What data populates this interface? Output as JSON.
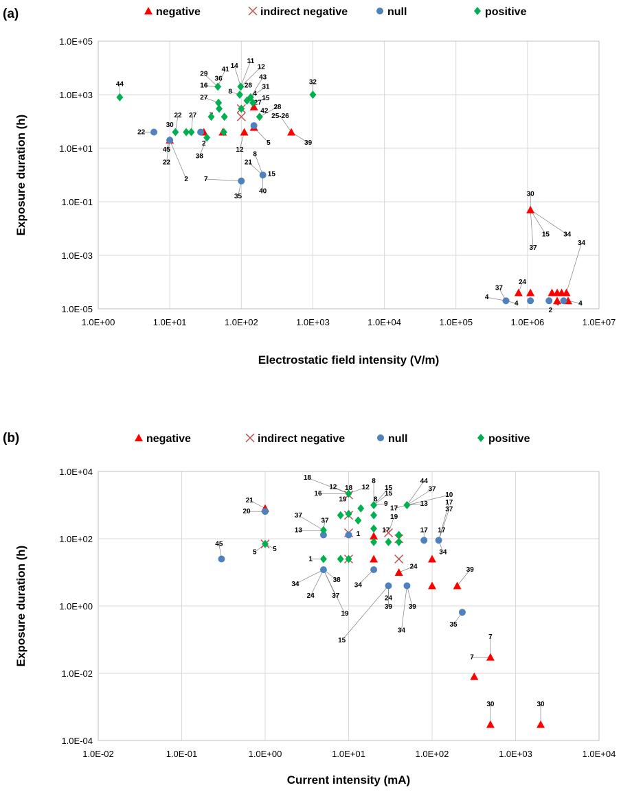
{
  "chart_data": [
    {
      "panel": "(a)",
      "type": "scatter",
      "xlabel": "Electrostatic field intensity (V/m)",
      "ylabel": "Exposure duration (h)",
      "x_scale": "log",
      "y_scale": "log",
      "xlim": [
        1,
        10000000
      ],
      "ylim": [
        1e-05,
        100000
      ],
      "x_ticks": [
        "1.0E+00",
        "1.0E+01",
        "1.0E+02",
        "1.0E+03",
        "1.0E+04",
        "1.0E+05",
        "1.0E+06",
        "1.0E+07"
      ],
      "y_ticks": [
        "1.0E-05",
        "1.0E-03",
        "1.0E-01",
        "1.0E+01",
        "1.0E+03",
        "1.0E+05"
      ],
      "grid": true,
      "legend_position": "top",
      "legend": [
        "negative",
        "indirect negative",
        "null",
        "positive"
      ],
      "series": [
        {
          "name": "negative",
          "color": "#ff0000",
          "marker": "triangle",
          "points": [
            {
              "x": 10,
              "y": 20
            },
            {
              "x": 30,
              "y": 40
            },
            {
              "x": 55,
              "y": 40
            },
            {
              "x": 110,
              "y": 40
            },
            {
              "x": 150,
              "y": 60
            },
            {
              "x": 150,
              "y": 350
            },
            {
              "x": 500,
              "y": 40
            },
            {
              "x": 1100000,
              "y": 0.05
            },
            {
              "x": 750000,
              "y": 4e-05
            },
            {
              "x": 1100000,
              "y": 4e-05
            },
            {
              "x": 2200000,
              "y": 4e-05
            },
            {
              "x": 2600000,
              "y": 4e-05
            },
            {
              "x": 2600000,
              "y": 2e-05
            },
            {
              "x": 3000000,
              "y": 4e-05
            },
            {
              "x": 3500000,
              "y": 4e-05
            },
            {
              "x": 3700000,
              "y": 2e-05
            }
          ]
        },
        {
          "name": "indirect negative",
          "color": "#c0504d",
          "marker": "x",
          "points": [
            {
              "x": 100,
              "y": 150
            },
            {
              "x": 100,
              "y": 300
            }
          ]
        },
        {
          "name": "null",
          "color": "#4f81bd",
          "marker": "circle",
          "points": [
            {
              "x": 6,
              "y": 40
            },
            {
              "x": 10,
              "y": 20
            },
            {
              "x": 27,
              "y": 40
            },
            {
              "x": 100,
              "y": 0.6
            },
            {
              "x": 150,
              "y": 70
            },
            {
              "x": 200,
              "y": 1
            },
            {
              "x": 500000,
              "y": 2e-05
            },
            {
              "x": 1100000,
              "y": 2e-05
            },
            {
              "x": 2000000,
              "y": 2e-05
            },
            {
              "x": 3200000,
              "y": 2e-05
            }
          ]
        },
        {
          "name": "positive",
          "color": "#00b050",
          "marker": "diamond",
          "points": [
            {
              "x": 2,
              "y": 800
            },
            {
              "x": 12,
              "y": 40
            },
            {
              "x": 17,
              "y": 40
            },
            {
              "x": 20,
              "y": 40
            },
            {
              "x": 33,
              "y": 25
            },
            {
              "x": 38,
              "y": 150
            },
            {
              "x": 47,
              "y": 2000
            },
            {
              "x": 48,
              "y": 500
            },
            {
              "x": 49,
              "y": 300
            },
            {
              "x": 57,
              "y": 40
            },
            {
              "x": 58,
              "y": 150
            },
            {
              "x": 95,
              "y": 1000
            },
            {
              "x": 98,
              "y": 2000
            },
            {
              "x": 100,
              "y": 300
            },
            {
              "x": 120,
              "y": 600
            },
            {
              "x": 135,
              "y": 800
            },
            {
              "x": 145,
              "y": 500
            },
            {
              "x": 180,
              "y": 150
            },
            {
              "x": 1000,
              "y": 1000
            }
          ]
        }
      ],
      "point_labels": [
        {
          "text": "44",
          "x": 2,
          "y": 2500
        },
        {
          "text": "29",
          "x": 30,
          "y": 6000
        },
        {
          "text": "41",
          "x": 60,
          "y": 9000
        },
        {
          "text": "14",
          "x": 80,
          "y": 12000
        },
        {
          "text": "11",
          "x": 135,
          "y": 18000
        },
        {
          "text": "12",
          "x": 190,
          "y": 11000
        },
        {
          "text": "43",
          "x": 200,
          "y": 4500
        },
        {
          "text": "36",
          "x": 48,
          "y": 4000
        },
        {
          "text": "16",
          "x": 30,
          "y": 2200
        },
        {
          "text": "8",
          "x": 70,
          "y": 1300
        },
        {
          "text": "28",
          "x": 125,
          "y": 2200
        },
        {
          "text": "4",
          "x": 155,
          "y": 1100
        },
        {
          "text": "31",
          "x": 220,
          "y": 2000
        },
        {
          "text": "15",
          "x": 220,
          "y": 750
        },
        {
          "text": "27",
          "x": 30,
          "y": 800
        },
        {
          "text": "27",
          "x": 170,
          "y": 500
        },
        {
          "text": "28",
          "x": 320,
          "y": 350
        },
        {
          "text": "42",
          "x": 210,
          "y": 250
        },
        {
          "text": "25-26",
          "x": 350,
          "y": 160
        },
        {
          "text": "22",
          "x": 13,
          "y": 170
        },
        {
          "text": "27",
          "x": 21,
          "y": 170
        },
        {
          "text": "7",
          "x": 38,
          "y": 170
        },
        {
          "text": "32",
          "x": 1000,
          "y": 3000
        },
        {
          "text": "30",
          "x": 10,
          "y": 75
        },
        {
          "text": "22",
          "x": 4,
          "y": 40
        },
        {
          "text": "45",
          "x": 9,
          "y": 9
        },
        {
          "text": "2",
          "x": 30,
          "y": 15
        },
        {
          "text": "22",
          "x": 9,
          "y": 3
        },
        {
          "text": "38",
          "x": 26,
          "y": 5
        },
        {
          "text": "12",
          "x": 95,
          "y": 9
        },
        {
          "text": "8",
          "x": 155,
          "y": 6
        },
        {
          "text": "5",
          "x": 240,
          "y": 16
        },
        {
          "text": "39",
          "x": 860,
          "y": 16
        },
        {
          "text": "21",
          "x": 125,
          "y": 3
        },
        {
          "text": "15",
          "x": 265,
          "y": 1.1
        },
        {
          "text": "2",
          "x": 17,
          "y": 0.7
        },
        {
          "text": "7",
          "x": 32,
          "y": 0.7
        },
        {
          "text": "35",
          "x": 90,
          "y": 0.16
        },
        {
          "text": "40",
          "x": 200,
          "y": 0.25
        },
        {
          "text": "30",
          "x": 1100000,
          "y": 0.2
        },
        {
          "text": "15",
          "x": 1800000,
          "y": 0.006
        },
        {
          "text": "34",
          "x": 3600000,
          "y": 0.006
        },
        {
          "text": "34",
          "x": 5700000,
          "y": 0.0029
        },
        {
          "text": "37",
          "x": 1200000,
          "y": 0.0019
        },
        {
          "text": "24",
          "x": 850000,
          "y": 0.0001
        },
        {
          "text": "37",
          "x": 400000,
          "y": 6e-05
        },
        {
          "text": "4",
          "x": 270000,
          "y": 2.7e-05
        },
        {
          "text": "4",
          "x": 700000,
          "y": 1.6e-05
        },
        {
          "text": "4",
          "x": 2600000,
          "y": 1.6e-05
        },
        {
          "text": "2",
          "x": 2100000,
          "y": 9e-06
        },
        {
          "text": "4",
          "x": 5500000,
          "y": 1.6e-05
        }
      ]
    },
    {
      "panel": "(b)",
      "type": "scatter",
      "xlabel": "Current intensity (mA)",
      "ylabel": "Exposure duration (h)",
      "x_scale": "log",
      "y_scale": "log",
      "xlim": [
        0.01,
        10000
      ],
      "ylim": [
        0.0001,
        10000
      ],
      "x_ticks": [
        "1.0E-02",
        "1.0E-01",
        "1.0E+00",
        "1.0E+01",
        "1.0E+02",
        "1.0E+03",
        "1.0E+04"
      ],
      "y_ticks": [
        "1.0E-04",
        "1.0E-02",
        "1.0E+00",
        "1.0E+02",
        "1.0E+04"
      ],
      "grid": true,
      "legend_position": "top",
      "legend": [
        "negative",
        "indirect negative",
        "null",
        "positive"
      ],
      "series": [
        {
          "name": "negative",
          "color": "#ff0000",
          "marker": "triangle",
          "points": [
            {
              "x": 1,
              "y": 800
            },
            {
              "x": 20,
              "y": 120
            },
            {
              "x": 20,
              "y": 25
            },
            {
              "x": 40,
              "y": 10
            },
            {
              "x": 100,
              "y": 25
            },
            {
              "x": 100,
              "y": 4
            },
            {
              "x": 200,
              "y": 4
            },
            {
              "x": 500,
              "y": 0.03
            },
            {
              "x": 320,
              "y": 0.008
            },
            {
              "x": 500,
              "y": 0.0003
            },
            {
              "x": 2000,
              "y": 0.0003
            }
          ]
        },
        {
          "name": "indirect negative",
          "color": "#c0504d",
          "marker": "x",
          "points": [
            {
              "x": 1,
              "y": 70
            },
            {
              "x": 10,
              "y": 2000
            },
            {
              "x": 10,
              "y": 500
            },
            {
              "x": 10,
              "y": 25
            },
            {
              "x": 10,
              "y": 150
            },
            {
              "x": 30,
              "y": 150
            },
            {
              "x": 40,
              "y": 100
            },
            {
              "x": 40,
              "y": 25
            }
          ]
        },
        {
          "name": "null",
          "color": "#4f81bd",
          "marker": "circle",
          "points": [
            {
              "x": 0.3,
              "y": 25
            },
            {
              "x": 1,
              "y": 650
            },
            {
              "x": 5,
              "y": 12
            },
            {
              "x": 5,
              "y": 130
            },
            {
              "x": 10,
              "y": 130
            },
            {
              "x": 20,
              "y": 12
            },
            {
              "x": 30,
              "y": 4
            },
            {
              "x": 50,
              "y": 4
            },
            {
              "x": 80,
              "y": 90
            },
            {
              "x": 120,
              "y": 90
            },
            {
              "x": 230,
              "y": 0.65
            }
          ]
        },
        {
          "name": "positive",
          "color": "#00b050",
          "marker": "diamond",
          "points": [
            {
              "x": 1,
              "y": 70
            },
            {
              "x": 5,
              "y": 25
            },
            {
              "x": 5,
              "y": 180
            },
            {
              "x": 8,
              "y": 500
            },
            {
              "x": 8,
              "y": 25
            },
            {
              "x": 10,
              "y": 25
            },
            {
              "x": 10,
              "y": 550
            },
            {
              "x": 10,
              "y": 2200
            },
            {
              "x": 13,
              "y": 350
            },
            {
              "x": 14,
              "y": 800
            },
            {
              "x": 20,
              "y": 1000
            },
            {
              "x": 20,
              "y": 500
            },
            {
              "x": 20,
              "y": 200
            },
            {
              "x": 20,
              "y": 80
            },
            {
              "x": 30,
              "y": 80
            },
            {
              "x": 40,
              "y": 130
            },
            {
              "x": 40,
              "y": 80
            },
            {
              "x": 50,
              "y": 1000
            }
          ]
        }
      ],
      "point_labels": [
        {
          "text": "18",
          "x": 3.2,
          "y": 6500
        },
        {
          "text": "8",
          "x": 20,
          "y": 5200
        },
        {
          "text": "44",
          "x": 80,
          "y": 5200
        },
        {
          "text": "12",
          "x": 6.5,
          "y": 3500
        },
        {
          "text": "18",
          "x": 10,
          "y": 3200
        },
        {
          "text": "12",
          "x": 16,
          "y": 3400
        },
        {
          "text": "15",
          "x": 30,
          "y": 3200
        },
        {
          "text": "37",
          "x": 100,
          "y": 3000
        },
        {
          "text": "16",
          "x": 4.3,
          "y": 2200
        },
        {
          "text": "15",
          "x": 30,
          "y": 2200
        },
        {
          "text": "10",
          "x": 160,
          "y": 2000
        },
        {
          "text": "19",
          "x": 8.5,
          "y": 1500
        },
        {
          "text": "8",
          "x": 21,
          "y": 1500
        },
        {
          "text": "9",
          "x": 28,
          "y": 1100
        },
        {
          "text": "13",
          "x": 80,
          "y": 1100
        },
        {
          "text": "17",
          "x": 160,
          "y": 1200
        },
        {
          "text": "21",
          "x": 0.65,
          "y": 1400
        },
        {
          "text": "17",
          "x": 35,
          "y": 800
        },
        {
          "text": "37",
          "x": 160,
          "y": 750
        },
        {
          "text": "20",
          "x": 0.6,
          "y": 650
        },
        {
          "text": "37",
          "x": 2.5,
          "y": 500
        },
        {
          "text": "37",
          "x": 5.2,
          "y": 350
        },
        {
          "text": "19",
          "x": 35,
          "y": 450
        },
        {
          "text": "13",
          "x": 2.5,
          "y": 180
        },
        {
          "text": "17",
          "x": 28,
          "y": 180
        },
        {
          "text": "1",
          "x": 13,
          "y": 140
        },
        {
          "text": "1",
          "x": 40,
          "y": 80
        },
        {
          "text": "17",
          "x": 80,
          "y": 180
        },
        {
          "text": "17",
          "x": 130,
          "y": 180
        },
        {
          "text": "45",
          "x": 0.28,
          "y": 70
        },
        {
          "text": "5",
          "x": 1.3,
          "y": 50
        },
        {
          "text": "5",
          "x": 0.75,
          "y": 40
        },
        {
          "text": "1",
          "x": 3.5,
          "y": 25
        },
        {
          "text": "24",
          "x": 60,
          "y": 15
        },
        {
          "text": "34",
          "x": 135,
          "y": 40
        },
        {
          "text": "39",
          "x": 285,
          "y": 12
        },
        {
          "text": "34",
          "x": 2.3,
          "y": 4.5
        },
        {
          "text": "38",
          "x": 7.2,
          "y": 6
        },
        {
          "text": "34",
          "x": 13,
          "y": 4.2
        },
        {
          "text": "24",
          "x": 3.5,
          "y": 2
        },
        {
          "text": "37",
          "x": 7,
          "y": 2
        },
        {
          "text": "24",
          "x": 30,
          "y": 1.7
        },
        {
          "text": "39",
          "x": 30,
          "y": 0.95
        },
        {
          "text": "39",
          "x": 58,
          "y": 0.95
        },
        {
          "text": "19",
          "x": 9,
          "y": 0.6
        },
        {
          "text": "35",
          "x": 180,
          "y": 0.28
        },
        {
          "text": "15",
          "x": 8.3,
          "y": 0.095
        },
        {
          "text": "34",
          "x": 43,
          "y": 0.19
        },
        {
          "text": "7",
          "x": 500,
          "y": 0.12
        },
        {
          "text": "7",
          "x": 300,
          "y": 0.03
        },
        {
          "text": "30",
          "x": 500,
          "y": 0.0012
        },
        {
          "text": "30",
          "x": 2000,
          "y": 0.0012
        }
      ]
    }
  ]
}
